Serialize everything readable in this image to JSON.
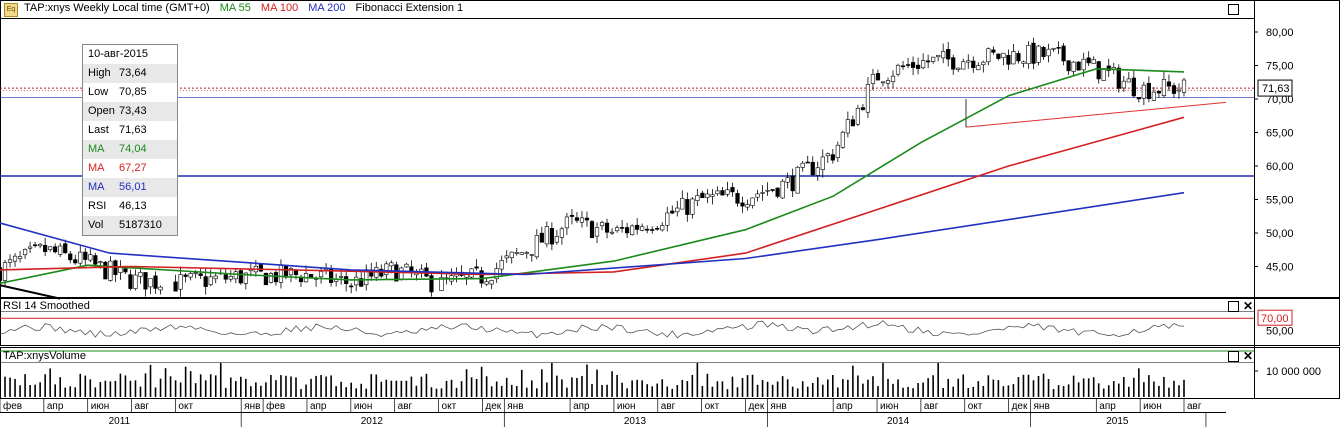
{
  "header": {
    "symbol_label": "TAP:xnys Weekly Local time (GMT+0)",
    "ma55_label": "MA 55",
    "ma100_label": "MA 100",
    "ma200_label": "MA 200",
    "fib_label": "Fibonacci Extension 1",
    "eq_icon_text": "Eq"
  },
  "data_window": {
    "date": "10-авг-2015",
    "rows": [
      {
        "label": "High",
        "value": "73,64",
        "color": "#000000"
      },
      {
        "label": "Low",
        "value": "70,85",
        "color": "#000000"
      },
      {
        "label": "Open",
        "value": "73,43",
        "color": "#000000"
      },
      {
        "label": "Last",
        "value": "71,63",
        "color": "#000000"
      },
      {
        "label": "MA",
        "value": "74,04",
        "color": "#1a8a1a"
      },
      {
        "label": "MA",
        "value": "67,27",
        "color": "#d42020"
      },
      {
        "label": "MA",
        "value": "56,01",
        "color": "#2030c0"
      },
      {
        "label": "RSI",
        "value": "46,13",
        "color": "#000000"
      },
      {
        "label": "Vol",
        "value": "5187310",
        "color": "#000000"
      }
    ]
  },
  "price_axis": {
    "ticks": [
      "80,00",
      "75,00",
      "70,00",
      "65,00",
      "60,00",
      "55,00",
      "50,00",
      "45,00"
    ],
    "last_price_label": "71,63"
  },
  "rsi_panel": {
    "title": "RSI 14 Smoothed",
    "ticks": [
      "50,00"
    ],
    "upper_label": "70,00"
  },
  "volume_panel": {
    "title": "TAP:xnysVolume",
    "ticks": [
      "10 000 000"
    ]
  },
  "time_axis": {
    "months": [
      "фев",
      "апр",
      "июн",
      "авг",
      "окт",
      "янв",
      "фев",
      "апр",
      "июн",
      "авг",
      "окт",
      "дек",
      "янв",
      "апр",
      "июн",
      "авг",
      "окт",
      "дек",
      "янв",
      "апр",
      "июн",
      "авг",
      "окт",
      "дек",
      "янв",
      "апр",
      "июн",
      "авг"
    ],
    "years": [
      "2011",
      "2012",
      "2013",
      "2014",
      "2015"
    ]
  },
  "colors": {
    "ma55": "#1a8a1a",
    "ma100": "#d42020",
    "ma200": "#2030c0",
    "hline": "#1a2fb0",
    "candle": "#000000",
    "fib": "#e03030"
  },
  "chart_data": [
    {
      "type": "candlestick",
      "title": "TAP:xnys Weekly",
      "x_range": [
        "2011-02",
        "2015-08"
      ],
      "ylim": [
        42,
        83
      ],
      "y_ticks": [
        45,
        50,
        55,
        60,
        65,
        70,
        75,
        80
      ],
      "close_keypoints": [
        {
          "x": "2011-02",
          "y": 44.5
        },
        {
          "x": "2011-04",
          "y": 47.5
        },
        {
          "x": "2011-06",
          "y": 45.5
        },
        {
          "x": "2011-08",
          "y": 43.0
        },
        {
          "x": "2011-10",
          "y": 42.5
        },
        {
          "x": "2012-01",
          "y": 43.5
        },
        {
          "x": "2012-04",
          "y": 43.8
        },
        {
          "x": "2012-06",
          "y": 42.5
        },
        {
          "x": "2012-08",
          "y": 44.5
        },
        {
          "x": "2012-10",
          "y": 42.3
        },
        {
          "x": "2012-12",
          "y": 43.5
        },
        {
          "x": "2013-02",
          "y": 47.5
        },
        {
          "x": "2013-04",
          "y": 51.5
        },
        {
          "x": "2013-06",
          "y": 50.0
        },
        {
          "x": "2013-08",
          "y": 52.0
        },
        {
          "x": "2013-10",
          "y": 55.0
        },
        {
          "x": "2013-12",
          "y": 55.5
        },
        {
          "x": "2014-02",
          "y": 57.5
        },
        {
          "x": "2014-04",
          "y": 62.0
        },
        {
          "x": "2014-06",
          "y": 73.5
        },
        {
          "x": "2014-08",
          "y": 75.5
        },
        {
          "x": "2014-10",
          "y": 76.0
        },
        {
          "x": "2014-12",
          "y": 76.5
        },
        {
          "x": "2015-02",
          "y": 76.5
        },
        {
          "x": "2015-04",
          "y": 74.5
        },
        {
          "x": "2015-06",
          "y": 71.5
        },
        {
          "x": "2015-08",
          "y": 71.63
        }
      ],
      "series": [
        {
          "name": "MA 55",
          "color": "#1a8a1a",
          "values": [
            {
              "x": "2011-02",
              "y": 42.5
            },
            {
              "x": "2011-06",
              "y": 45.2
            },
            {
              "x": "2012-01",
              "y": 43.8
            },
            {
              "x": "2012-06",
              "y": 43.0
            },
            {
              "x": "2012-12",
              "y": 43.2
            },
            {
              "x": "2013-06",
              "y": 45.8
            },
            {
              "x": "2013-12",
              "y": 50.5
            },
            {
              "x": "2014-04",
              "y": 55.5
            },
            {
              "x": "2014-08",
              "y": 63.5
            },
            {
              "x": "2014-12",
              "y": 70.5
            },
            {
              "x": "2015-04",
              "y": 74.5
            },
            {
              "x": "2015-08",
              "y": 74.04
            }
          ]
        },
        {
          "name": "MA 100",
          "color": "#d42020",
          "values": [
            {
              "x": "2011-02",
              "y": 44.5
            },
            {
              "x": "2011-08",
              "y": 45.0
            },
            {
              "x": "2012-06",
              "y": 44.3
            },
            {
              "x": "2012-12",
              "y": 43.8
            },
            {
              "x": "2013-06",
              "y": 44.2
            },
            {
              "x": "2013-12",
              "y": 47.0
            },
            {
              "x": "2014-06",
              "y": 53.5
            },
            {
              "x": "2014-12",
              "y": 60.0
            },
            {
              "x": "2015-08",
              "y": 67.27
            }
          ]
        },
        {
          "name": "MA 200",
          "color": "#2030c0",
          "values": [
            {
              "x": "2011-02",
              "y": 51.5
            },
            {
              "x": "2011-07",
              "y": 47.0
            },
            {
              "x": "2012-06",
              "y": 44.5
            },
            {
              "x": "2013-02",
              "y": 43.8
            },
            {
              "x": "2013-12",
              "y": 46.2
            },
            {
              "x": "2014-06",
              "y": 49.0
            },
            {
              "x": "2015-08",
              "y": 56.01
            }
          ]
        }
      ],
      "horizontal_lines": [
        58.5,
        71.63
      ],
      "last": 71.63
    },
    {
      "type": "line",
      "title": "RSI 14 Smoothed",
      "ylim": [
        30,
        80
      ],
      "reference_lines": [
        70,
        50,
        30
      ],
      "last": 46.13
    },
    {
      "type": "bar",
      "title": "TAP:xnysVolume",
      "y_ticks": [
        10000000
      ],
      "last": 5187310
    }
  ]
}
